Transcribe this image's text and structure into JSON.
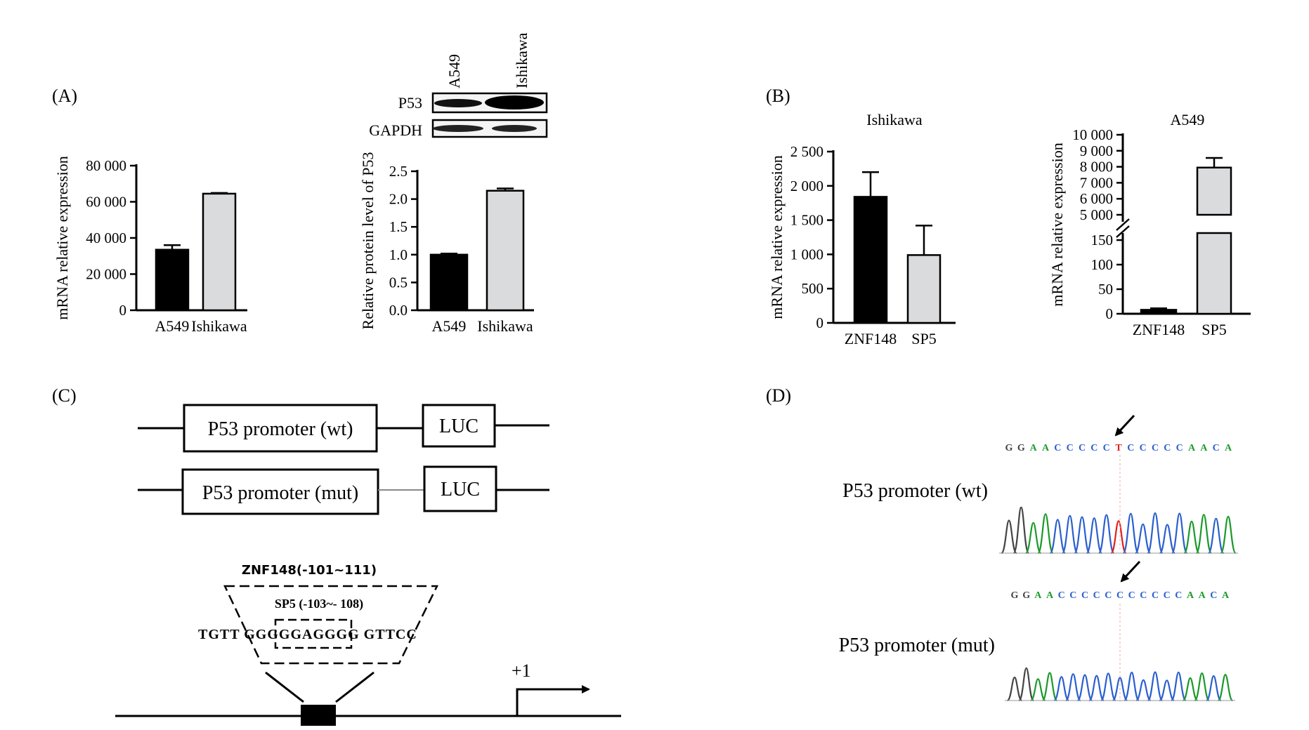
{
  "panels": {
    "A": "(A)",
    "B": "(B)",
    "C": "(C)",
    "D": "(D)"
  },
  "colors": {
    "bar_dark": "#000000",
    "bar_light": "#d9dbdd",
    "seq_G": "#444444",
    "seq_A": "#1a9a2a",
    "seq_C": "#2b5fcf",
    "seq_T": "#e02020"
  },
  "chart_data": [
    {
      "id": "A-mrna",
      "type": "bar",
      "categories": [
        "A549",
        "Ishikawa"
      ],
      "values": [
        33500,
        64500
      ],
      "errors": [
        2500,
        400
      ],
      "ylabel": "mRNA relative expression",
      "ylim": [
        0,
        80000
      ],
      "yticks": [
        0,
        20000,
        40000,
        60000,
        80000
      ],
      "ytick_labels": [
        "0",
        "20 000",
        "40 000",
        "60 000",
        "80 000"
      ]
    },
    {
      "id": "A-protein",
      "type": "bar",
      "categories": [
        "A549",
        "Ishikawa"
      ],
      "values": [
        1.0,
        2.15
      ],
      "errors": [
        0.02,
        0.04
      ],
      "ylabel": "Relative protein level of P53",
      "ylim": [
        0,
        2.5
      ],
      "yticks": [
        0,
        0.5,
        1.0,
        1.5,
        2.0,
        2.5
      ],
      "ytick_labels": [
        "0.0",
        "0.5",
        "1.0",
        "1.5",
        "2.0",
        "2.5"
      ]
    },
    {
      "id": "B-ishikawa",
      "type": "bar",
      "title": "Ishikawa",
      "categories": [
        "ZNF148",
        "SP5"
      ],
      "values": [
        1840,
        990
      ],
      "errors": [
        360,
        430
      ],
      "ylabel": "mRNA relative expression",
      "ylim": [
        0,
        2500
      ],
      "yticks": [
        0,
        500,
        1000,
        1500,
        2000,
        2500
      ],
      "ytick_labels": [
        "0",
        "500",
        "1 000",
        "1 500",
        "2 000",
        "2 500"
      ]
    },
    {
      "id": "B-a549",
      "type": "bar",
      "title": "A549",
      "categories": [
        "ZNF148",
        "SP5"
      ],
      "values": [
        8,
        7950
      ],
      "errors": [
        3,
        600
      ],
      "ylabel": "mRNA relative expression",
      "axis_break": {
        "lower": [
          0,
          150
        ],
        "upper": [
          5000,
          10000
        ]
      },
      "yticks_lower": [
        0,
        50,
        100,
        150
      ],
      "ytick_labels_lower": [
        "0",
        "50",
        "100",
        "150"
      ],
      "yticks_upper": [
        5000,
        6000,
        7000,
        8000,
        9000,
        10000
      ],
      "ytick_labels_upper": [
        "5 000",
        "6 000",
        "7 000",
        "8 000",
        "9 000",
        "10 000"
      ]
    }
  ],
  "western": {
    "lanes": [
      "A549",
      "Ishikawa"
    ],
    "rows": [
      "P53",
      "GAPDH"
    ]
  },
  "constructs": {
    "wt": {
      "promoter": "P53 promoter (wt)",
      "reporter": "LUC"
    },
    "mut": {
      "promoter": "P53 promoter (mut)",
      "reporter": "LUC"
    }
  },
  "binding": {
    "znf148": "ZNF148(-101~111)",
    "sp5": "SP5  (-103~- 108)",
    "sequence": "TGTT GGGGGAGGGG GTTCC",
    "tss": "+1"
  },
  "sequencing": {
    "wt_label": "P53 promoter (wt)",
    "mut_label": "P53 promoter (mut)",
    "wt_seq": "GGAACCCCCTCCCCCAACA",
    "mut_seq": "GGAACCCCCCCCCCCAACA"
  }
}
